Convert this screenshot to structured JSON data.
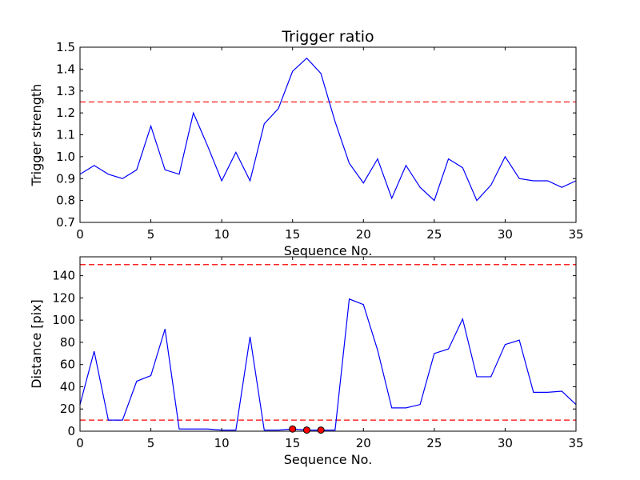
{
  "chart_data": [
    {
      "type": "line",
      "title": "Trigger ratio",
      "xlabel": "Sequence No.",
      "ylabel": "Trigger strength",
      "xlim": [
        0,
        35
      ],
      "ylim": [
        0.7,
        1.5
      ],
      "xticks": [
        0,
        5,
        10,
        15,
        20,
        25,
        30,
        35
      ],
      "yticks": [
        0.7,
        0.8,
        0.9,
        1.0,
        1.1,
        1.2,
        1.3,
        1.4,
        1.5
      ],
      "ytick_labels": [
        "0.7",
        "0.8",
        "0.9",
        "1.0",
        "1.1",
        "1.2",
        "1.3",
        "1.4",
        "1.5"
      ],
      "grid": false,
      "series": [
        {
          "color": "#0000ff",
          "x": [
            0,
            1,
            2,
            3,
            4,
            5,
            6,
            7,
            8,
            9,
            10,
            11,
            12,
            13,
            14,
            15,
            16,
            17,
            18,
            19,
            20,
            21,
            22,
            23,
            24,
            25,
            26,
            27,
            28,
            29,
            30,
            31,
            32,
            33,
            34,
            35
          ],
          "values": [
            0.92,
            0.96,
            0.92,
            0.9,
            0.94,
            1.14,
            0.94,
            0.92,
            1.2,
            1.05,
            0.89,
            1.02,
            0.89,
            1.15,
            1.22,
            1.39,
            1.45,
            1.38,
            1.16,
            0.97,
            0.88,
            0.99,
            0.81,
            0.96,
            0.86,
            0.8,
            0.99,
            0.95,
            0.8,
            0.87,
            1.0,
            0.9,
            0.89,
            0.89,
            0.86,
            0.89
          ]
        }
      ],
      "threshold_lines": [
        {
          "y": 1.25,
          "color": "#ff0000",
          "style": "dashed"
        }
      ]
    },
    {
      "type": "line",
      "title": "",
      "xlabel": "Sequence No.",
      "ylabel": "Distance [pix]",
      "xlim": [
        0,
        35
      ],
      "ylim": [
        0,
        157
      ],
      "xticks": [
        0,
        5,
        10,
        15,
        20,
        25,
        30,
        35
      ],
      "yticks": [
        0,
        20,
        40,
        60,
        80,
        100,
        120,
        140
      ],
      "ytick_labels": [
        "0",
        "20",
        "40",
        "60",
        "80",
        "100",
        "120",
        "140"
      ],
      "grid": false,
      "series": [
        {
          "color": "#0000ff",
          "x": [
            0,
            1,
            2,
            3,
            4,
            5,
            6,
            7,
            8,
            9,
            10,
            11,
            12,
            13,
            14,
            15,
            16,
            17,
            18,
            19,
            20,
            21,
            22,
            23,
            24,
            25,
            26,
            27,
            28,
            29,
            30,
            31,
            32,
            33,
            34,
            35
          ],
          "values": [
            24,
            72,
            10,
            10,
            45,
            50,
            92,
            2,
            2,
            2,
            1,
            1,
            85,
            1,
            1,
            2,
            1,
            1,
            1,
            119,
            114,
            73,
            21,
            21,
            24,
            70,
            74,
            101,
            49,
            49,
            78,
            82,
            35,
            35,
            36,
            24
          ]
        }
      ],
      "markers": {
        "color": "#ff0000",
        "x": [
          15,
          16,
          17
        ],
        "y": [
          2,
          1,
          1
        ]
      },
      "threshold_lines": [
        {
          "y": 150,
          "color": "#ff0000",
          "style": "dashed"
        },
        {
          "y": 10,
          "color": "#ff0000",
          "style": "dashed"
        }
      ]
    }
  ]
}
